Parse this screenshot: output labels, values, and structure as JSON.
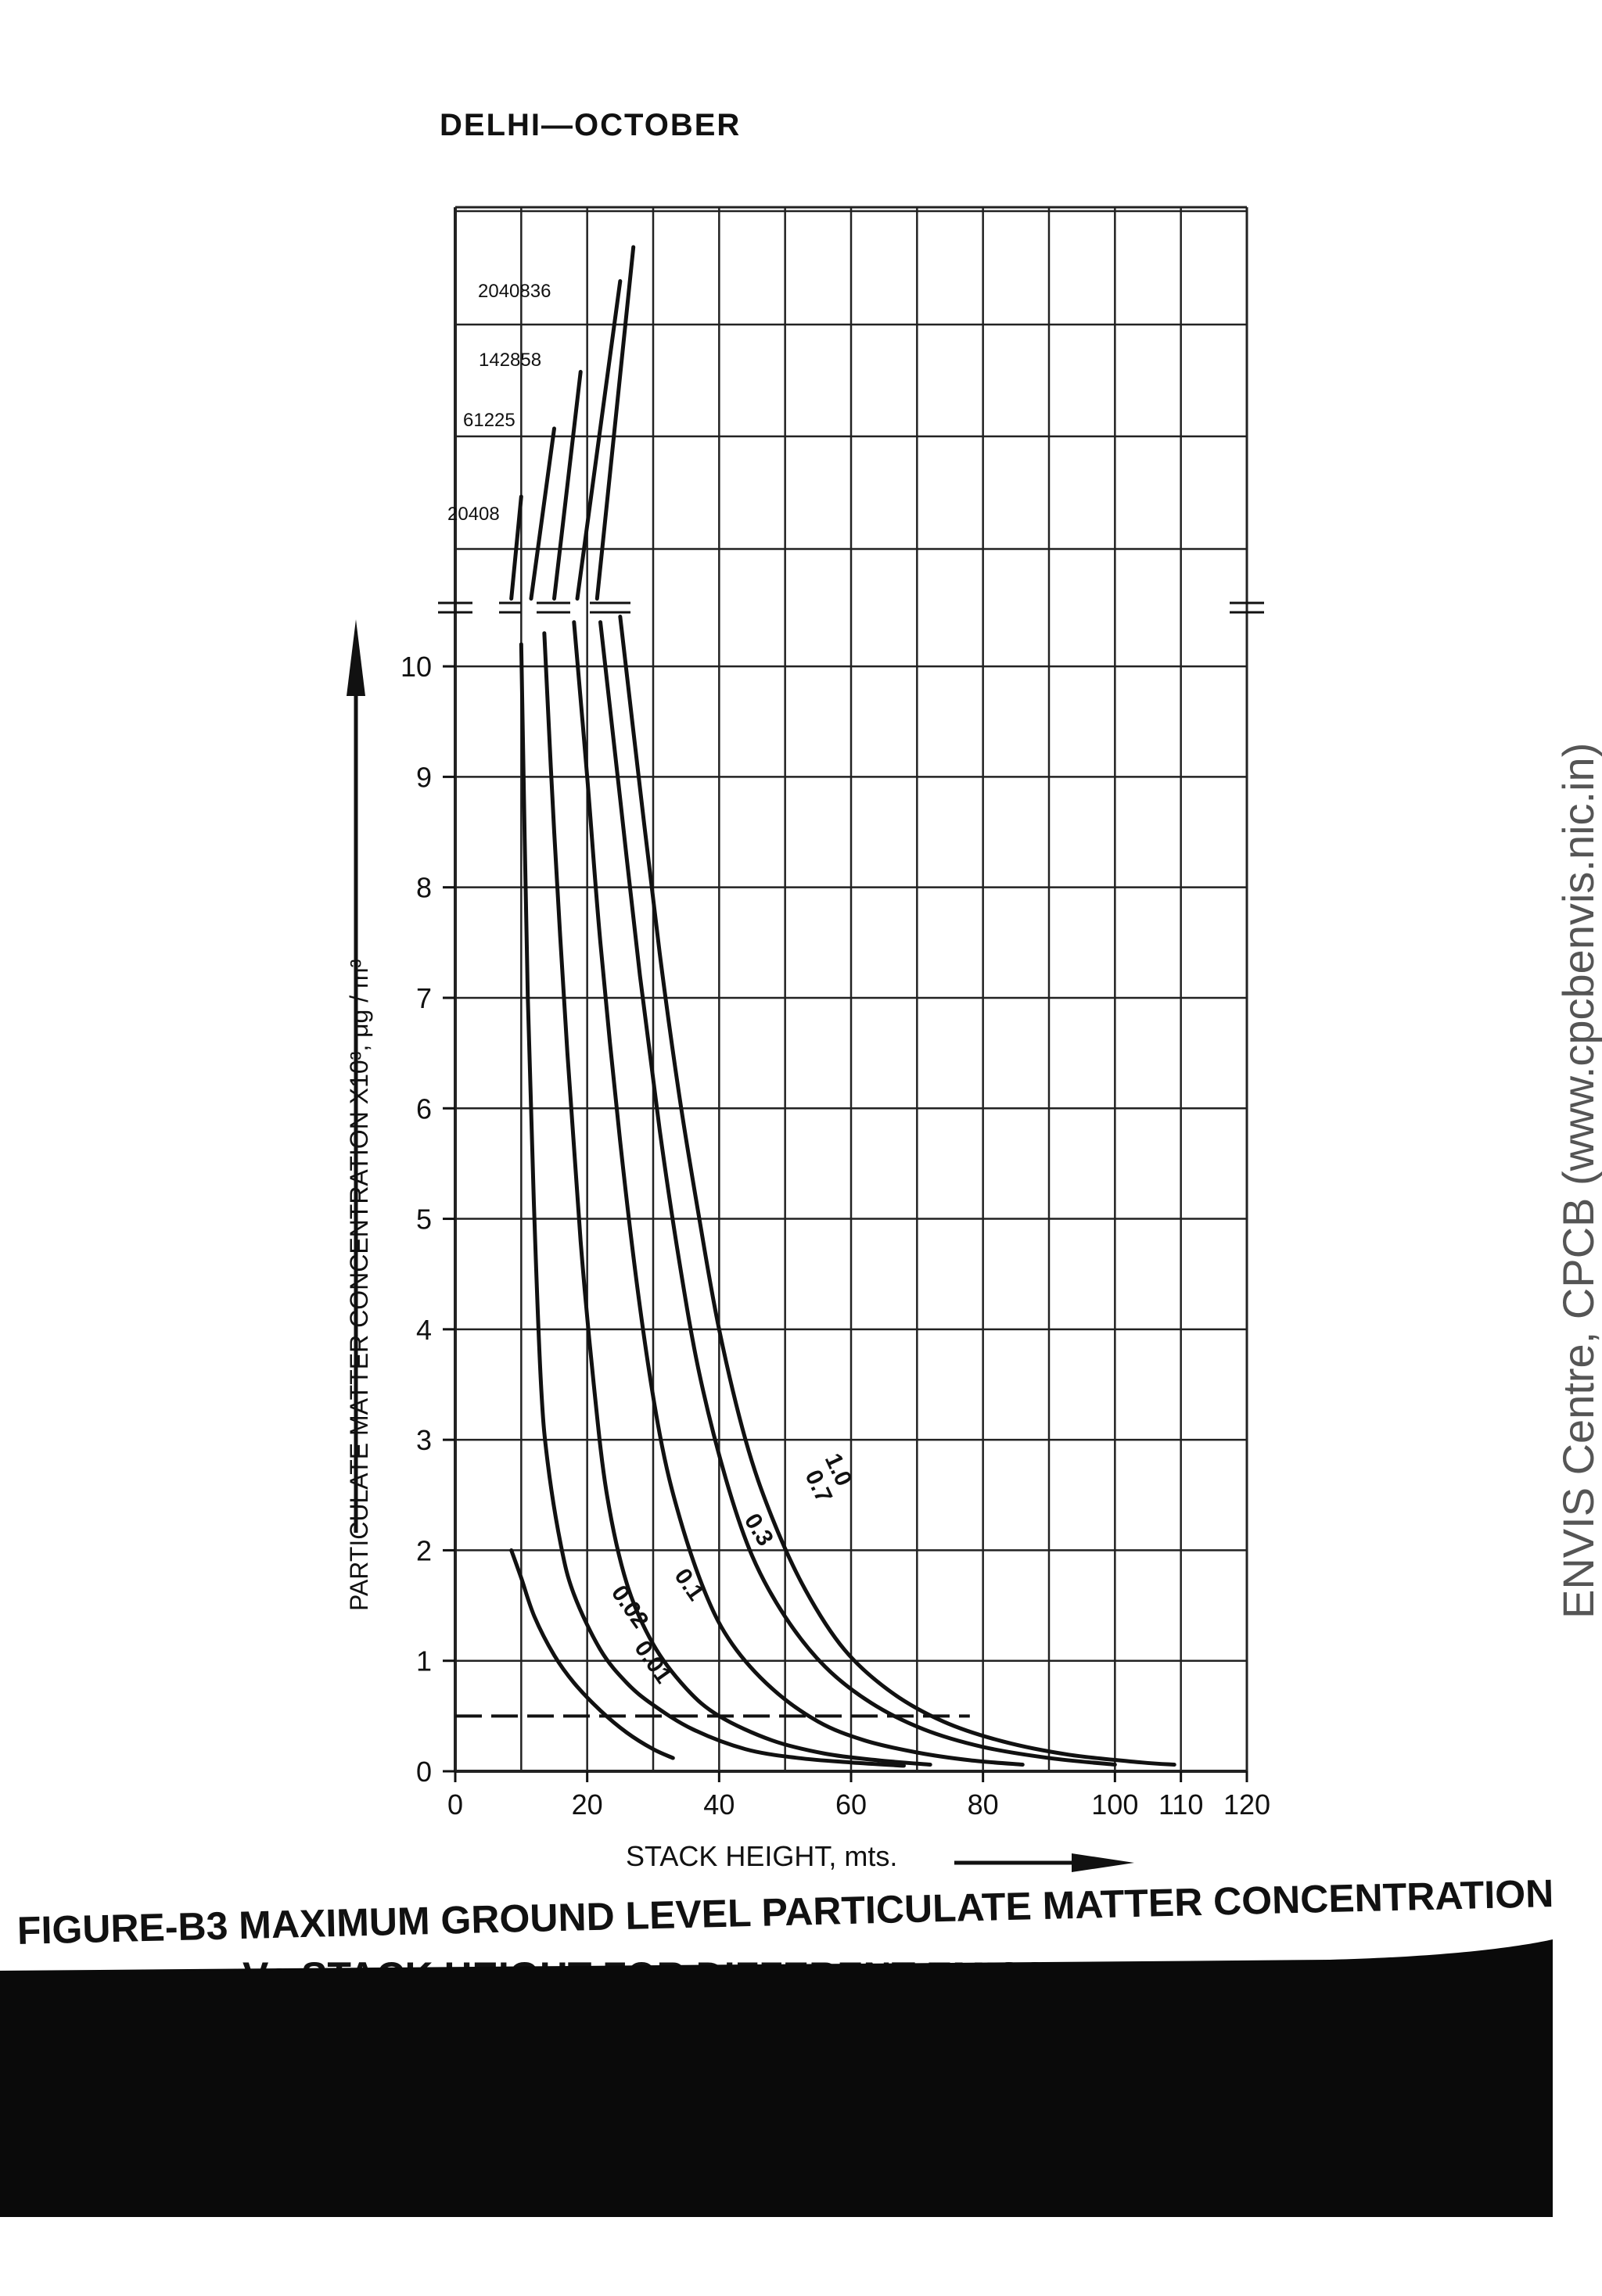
{
  "header": {
    "title": "DELHI—OCTOBER"
  },
  "caption": {
    "line1": "FIGURE-B3 MAXIMUM GROUND LEVEL PARTICULATE MATTER CONCENTRATION",
    "line2": "Vs STACK HEIGHT FOR DIFFERENT EMISSION RATES"
  },
  "watermark": "ENVIS Centre, CPCB (www.cpcbenvis.nic.in)",
  "chart_data": {
    "type": "line",
    "title": "DELHI—OCTOBER",
    "xlabel": "STACK HEIGHT, mts.",
    "ylabel": "PARTICULATE MATTER CONCENTRATION X10³, μg / m³",
    "xlim": [
      0,
      120
    ],
    "ylim": [
      0,
      10.5
    ],
    "x_ticks": [
      "0",
      "20",
      "40",
      "60",
      "80",
      "100",
      "110",
      "120"
    ],
    "y_ticks": [
      "0",
      "1",
      "2",
      "3",
      "4",
      "5",
      "6",
      "7",
      "8",
      "9",
      "10"
    ],
    "grid": true,
    "broken_axis": true,
    "reference_line": {
      "y": 0.5,
      "style": "dashed"
    },
    "series": [
      {
        "name": "0.01",
        "points": [
          [
            8.5,
            2.0
          ],
          [
            10,
            1.75
          ],
          [
            12,
            1.4
          ],
          [
            15,
            1.05
          ],
          [
            18,
            0.8
          ],
          [
            22,
            0.55
          ],
          [
            26,
            0.35
          ],
          [
            30,
            0.2
          ],
          [
            33,
            0.12
          ]
        ]
      },
      {
        "name": "0.02",
        "points": [
          [
            10,
            10.2
          ],
          [
            11,
            7
          ],
          [
            12,
            5
          ],
          [
            13,
            3.5
          ],
          [
            14,
            2.8
          ],
          [
            16,
            2.05
          ],
          [
            18,
            1.6
          ],
          [
            22,
            1.1
          ],
          [
            26,
            0.8
          ],
          [
            30,
            0.6
          ],
          [
            36,
            0.38
          ],
          [
            44,
            0.2
          ],
          [
            52,
            0.12
          ],
          [
            60,
            0.08
          ],
          [
            68,
            0.05
          ]
        ]
      },
      {
        "name": "0.1",
        "points": [
          [
            13.5,
            10.3
          ],
          [
            15,
            8.5
          ],
          [
            17,
            6.5
          ],
          [
            19,
            4.8
          ],
          [
            21,
            3.5
          ],
          [
            23,
            2.5
          ],
          [
            26,
            1.7
          ],
          [
            30,
            1.15
          ],
          [
            35,
            0.75
          ],
          [
            40,
            0.5
          ],
          [
            48,
            0.28
          ],
          [
            56,
            0.16
          ],
          [
            64,
            0.1
          ],
          [
            72,
            0.06
          ]
        ]
      },
      {
        "name": "0.3",
        "points": [
          [
            18,
            10.4
          ],
          [
            20,
            9
          ],
          [
            22,
            7.5
          ],
          [
            25,
            5.7
          ],
          [
            28,
            4.2
          ],
          [
            31,
            3.05
          ],
          [
            34,
            2.3
          ],
          [
            38,
            1.6
          ],
          [
            42,
            1.15
          ],
          [
            48,
            0.75
          ],
          [
            55,
            0.45
          ],
          [
            62,
            0.28
          ],
          [
            70,
            0.17
          ],
          [
            78,
            0.1
          ],
          [
            86,
            0.06
          ]
        ]
      },
      {
        "name": "0.7",
        "points": [
          [
            22,
            10.4
          ],
          [
            25,
            8.8
          ],
          [
            28,
            7.2
          ],
          [
            31,
            5.8
          ],
          [
            34,
            4.6
          ],
          [
            37,
            3.6
          ],
          [
            41,
            2.65
          ],
          [
            45,
            1.95
          ],
          [
            50,
            1.4
          ],
          [
            56,
            0.95
          ],
          [
            63,
            0.62
          ],
          [
            71,
            0.38
          ],
          [
            80,
            0.22
          ],
          [
            90,
            0.12
          ],
          [
            100,
            0.06
          ]
        ]
      },
      {
        "name": "1.0",
        "points": [
          [
            25,
            10.45
          ],
          [
            28,
            8.9
          ],
          [
            31,
            7.4
          ],
          [
            34,
            6.1
          ],
          [
            37,
            5.0
          ],
          [
            40,
            4.0
          ],
          [
            44,
            3.0
          ],
          [
            48,
            2.3
          ],
          [
            53,
            1.65
          ],
          [
            59,
            1.1
          ],
          [
            66,
            0.72
          ],
          [
            74,
            0.45
          ],
          [
            83,
            0.27
          ],
          [
            93,
            0.15
          ],
          [
            104,
            0.08
          ],
          [
            109,
            0.06
          ]
        ]
      }
    ],
    "upper_segment": {
      "series": [
        {
          "name": "20408",
          "points": [
            [
              8.5,
              0.1
            ],
            [
              10,
              1.0
            ]
          ]
        },
        {
          "name": "61225",
          "points": [
            [
              11.5,
              0.1
            ],
            [
              15,
              1.6
            ]
          ]
        },
        {
          "name": "142858",
          "points": [
            [
              15,
              0.1
            ],
            [
              19,
              2.1
            ]
          ]
        },
        {
          "name": "2040836",
          "points": [
            [
              18.5,
              0.1
            ],
            [
              25,
              2.9
            ]
          ]
        },
        {
          "name": "",
          "points": [
            [
              21.5,
              0.1
            ],
            [
              27,
              3.2
            ]
          ]
        }
      ],
      "labels": [
        "20408",
        "61225",
        "142858",
        "2040836"
      ]
    }
  }
}
